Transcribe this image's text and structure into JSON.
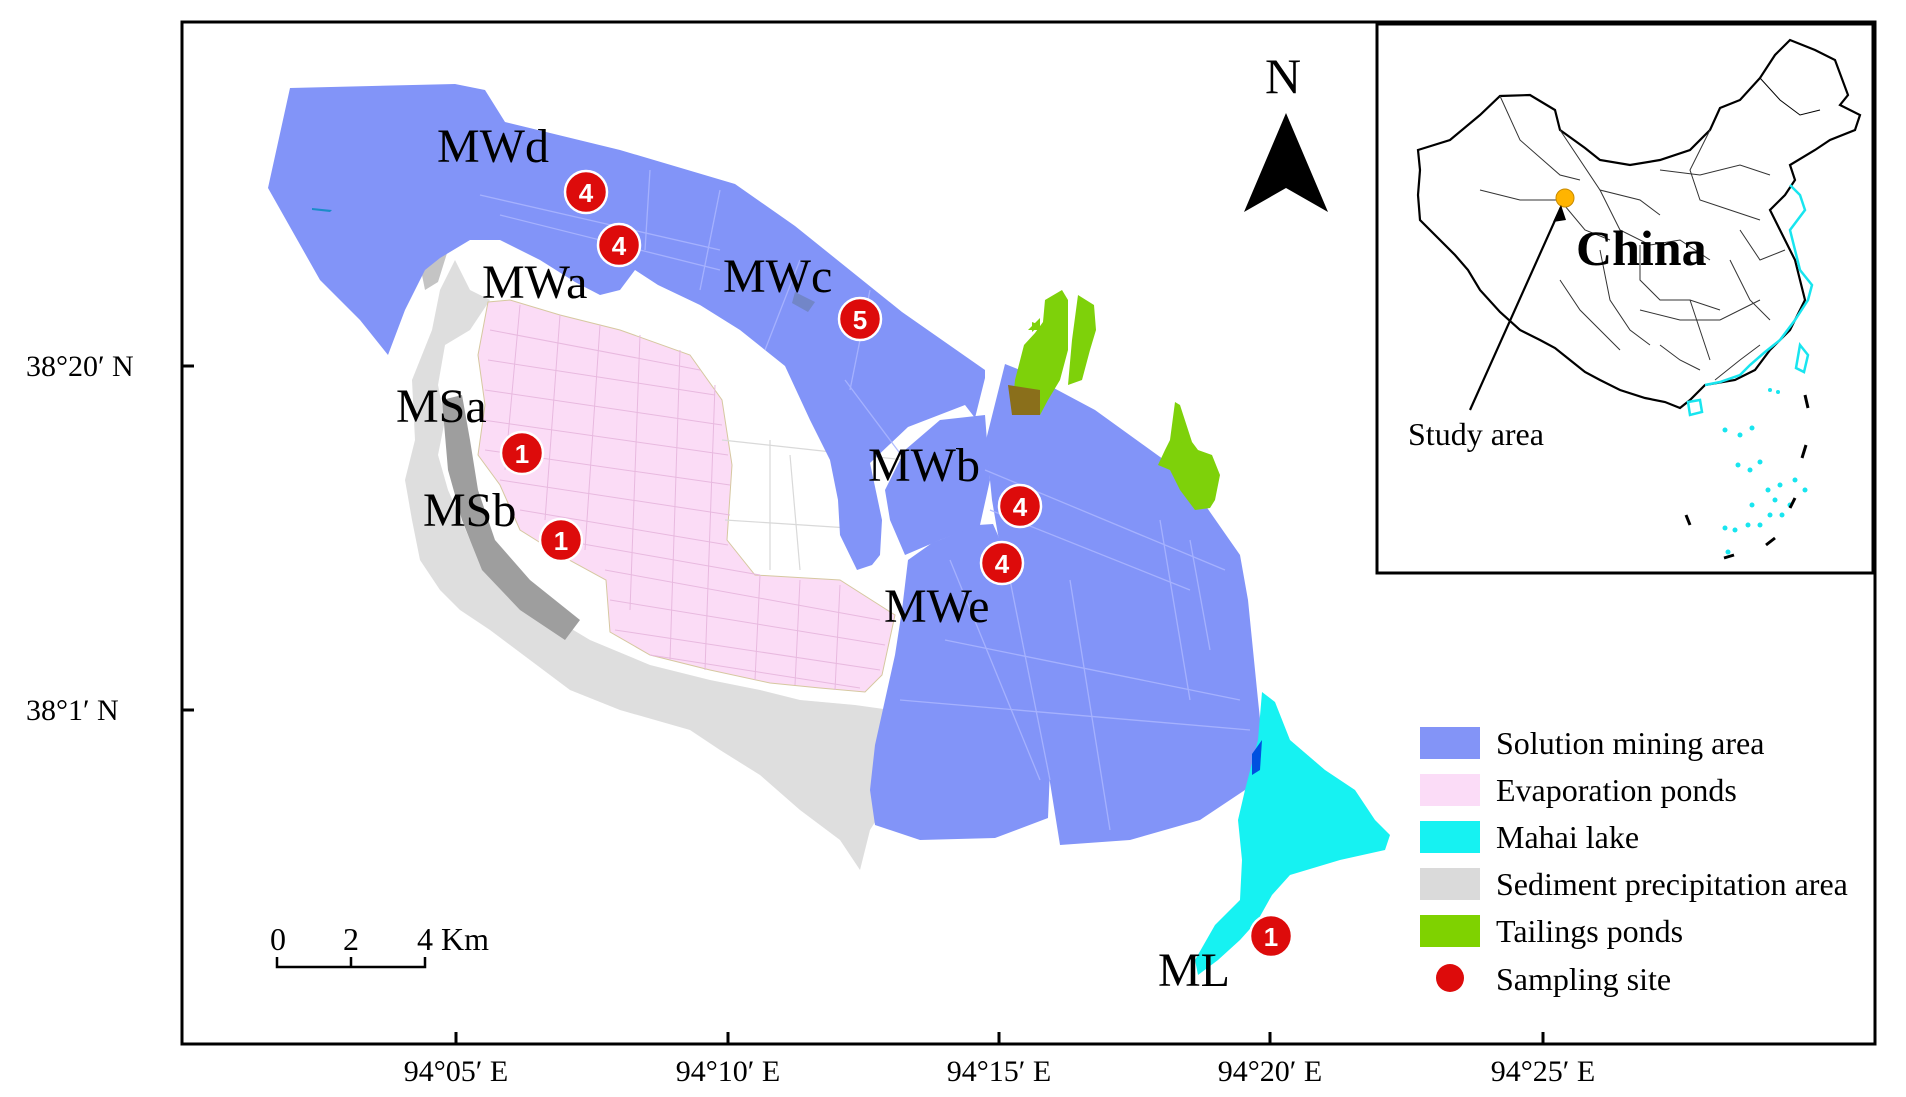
{
  "axes": {
    "x_ticks": [
      "94°05′ E",
      "94°10′ E",
      "94°15′ E",
      "94°20′ E",
      "94°25′ E"
    ],
    "y_ticks": [
      "38°20′ N",
      "38°1′ N"
    ]
  },
  "north_arrow": {
    "label": "N"
  },
  "scale_bar": {
    "ticks": [
      "0",
      "2",
      "4 Km"
    ]
  },
  "sites": [
    {
      "name": "MWd",
      "count": "4"
    },
    {
      "name": "MWa",
      "count": "4"
    },
    {
      "name": "MWc",
      "count": "5"
    },
    {
      "name": "MSa",
      "count": "1"
    },
    {
      "name": "MSb",
      "count": "1"
    },
    {
      "name": "MWb",
      "count": "4"
    },
    {
      "name": "MWe",
      "count": "4"
    },
    {
      "name": "ML",
      "count": "1"
    }
  ],
  "inset": {
    "country": "China",
    "pointer_label": "Study area"
  },
  "legend": [
    {
      "label": "Solution mining area",
      "color": "#8394f7"
    },
    {
      "label": "Evaporation ponds",
      "color": "#fbdcf7"
    },
    {
      "label": "Mahai lake",
      "color": "#16f2f2"
    },
    {
      "label": "Sediment precipitation area",
      "color": "#dadada"
    },
    {
      "label": "Tailings ponds",
      "color": "#7fd200"
    },
    {
      "label": "Sampling site",
      "color": "#dd0b0b"
    }
  ]
}
